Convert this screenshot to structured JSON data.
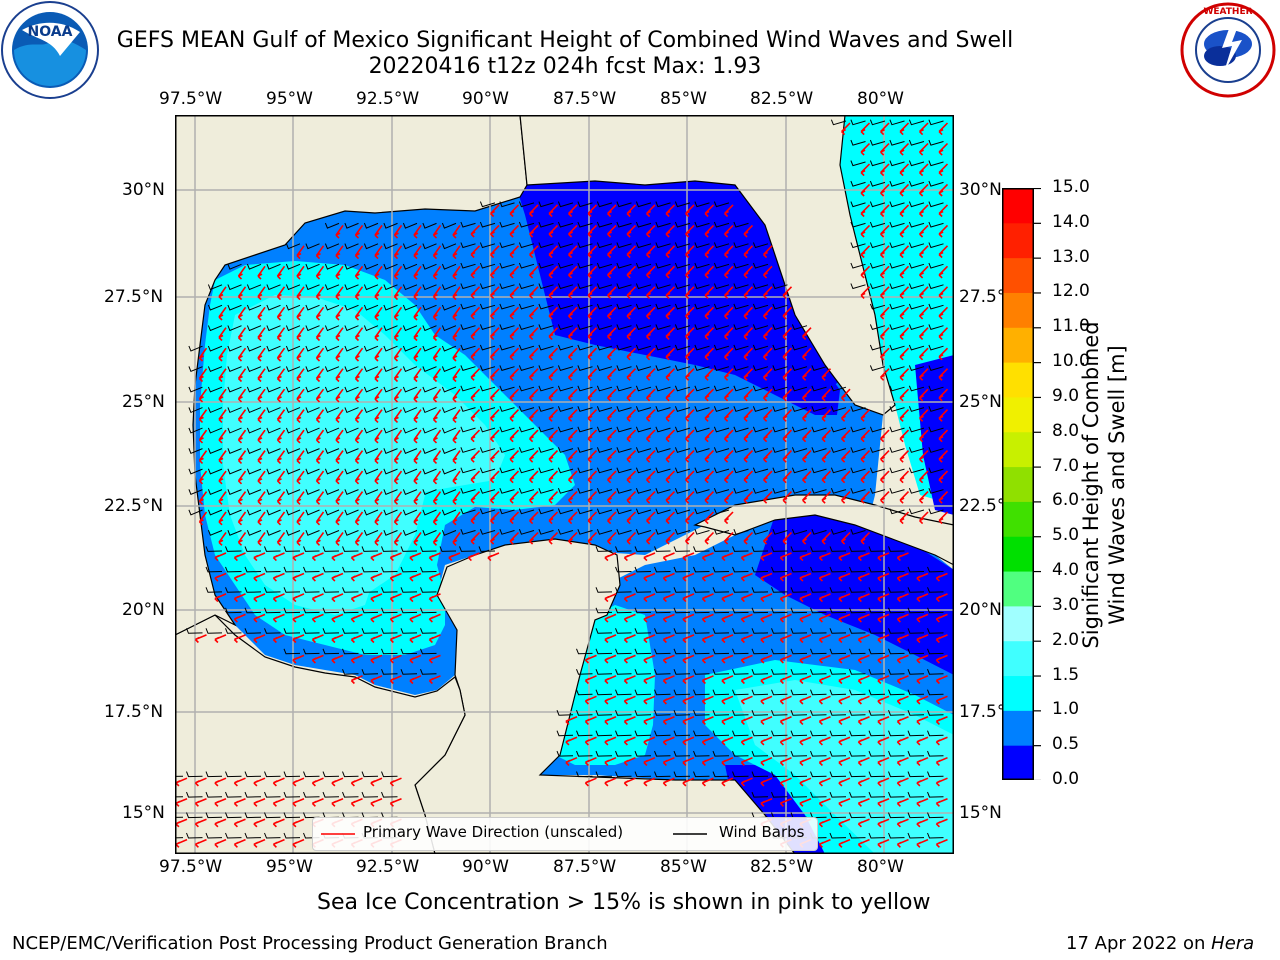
{
  "header": {
    "title_line1": "GEFS MEAN Gulf of Mexico Significant Height of Combined Wind Waves and Swell",
    "title_line2": "20220416 t12z 024h fcst   Max: 1.93"
  },
  "logos": {
    "left": {
      "icon": "noaa-logo",
      "text": "NOAA",
      "ring_text": "NATIONAL OCEANIC AND ATMOSPHERIC ADMINISTRATION · U.S. DEPARTMENT OF COMMERCE"
    },
    "right": {
      "icon": "national-weather-service-logo",
      "ring_text": "NATIONAL WEATHER SERVICE"
    }
  },
  "map": {
    "lon_labels": [
      "97.5°W",
      "95°W",
      "92.5°W",
      "90°W",
      "87.5°W",
      "85°W",
      "82.5°W",
      "80°W"
    ],
    "lat_labels": [
      "30°N",
      "27.5°N",
      "25°N",
      "22.5°N",
      "20°N",
      "17.5°N",
      "15°N"
    ],
    "lon_range": [
      -98,
      -78.2
    ],
    "lat_range": [
      14,
      31.8
    ],
    "land_color": "#efeddb",
    "grid_color": "#b0b0b0"
  },
  "legend": {
    "wave_label": "Primary Wave Direction (unscaled)",
    "barb_label": "Wind Barbs",
    "wave_color": "#ff0000",
    "barb_color": "#000000"
  },
  "colorbar": {
    "label_line1": "Significant Height of Combined",
    "label_line2": "Wind Waves and Swell [m]",
    "ticks": [
      "15.0",
      "14.0",
      "13.0",
      "12.0",
      "11.0",
      "10.0",
      "9.0",
      "8.0",
      "7.0",
      "6.0",
      "5.0",
      "4.0",
      "3.0",
      "2.0",
      "1.5",
      "1.0",
      "0.5",
      "0.0"
    ],
    "colors_bottom_to_top": [
      "#0000ff",
      "#0080ff",
      "#00ffff",
      "#40ffff",
      "#a0ffff",
      "#50ff80",
      "#00e000",
      "#40e000",
      "#90e000",
      "#c8f000",
      "#f0f000",
      "#ffe000",
      "#ffb000",
      "#ff8000",
      "#ff5000",
      "#ff2000",
      "#ff0000"
    ]
  },
  "notes": {
    "sea_ice": "Sea Ice Concentration > 15% is shown in pink to yellow",
    "credit": "NCEP/EMC/Verification Post Processing Product Generation Branch",
    "date_prefix": "17 Apr 2022 on ",
    "date_host": "Hera"
  }
}
